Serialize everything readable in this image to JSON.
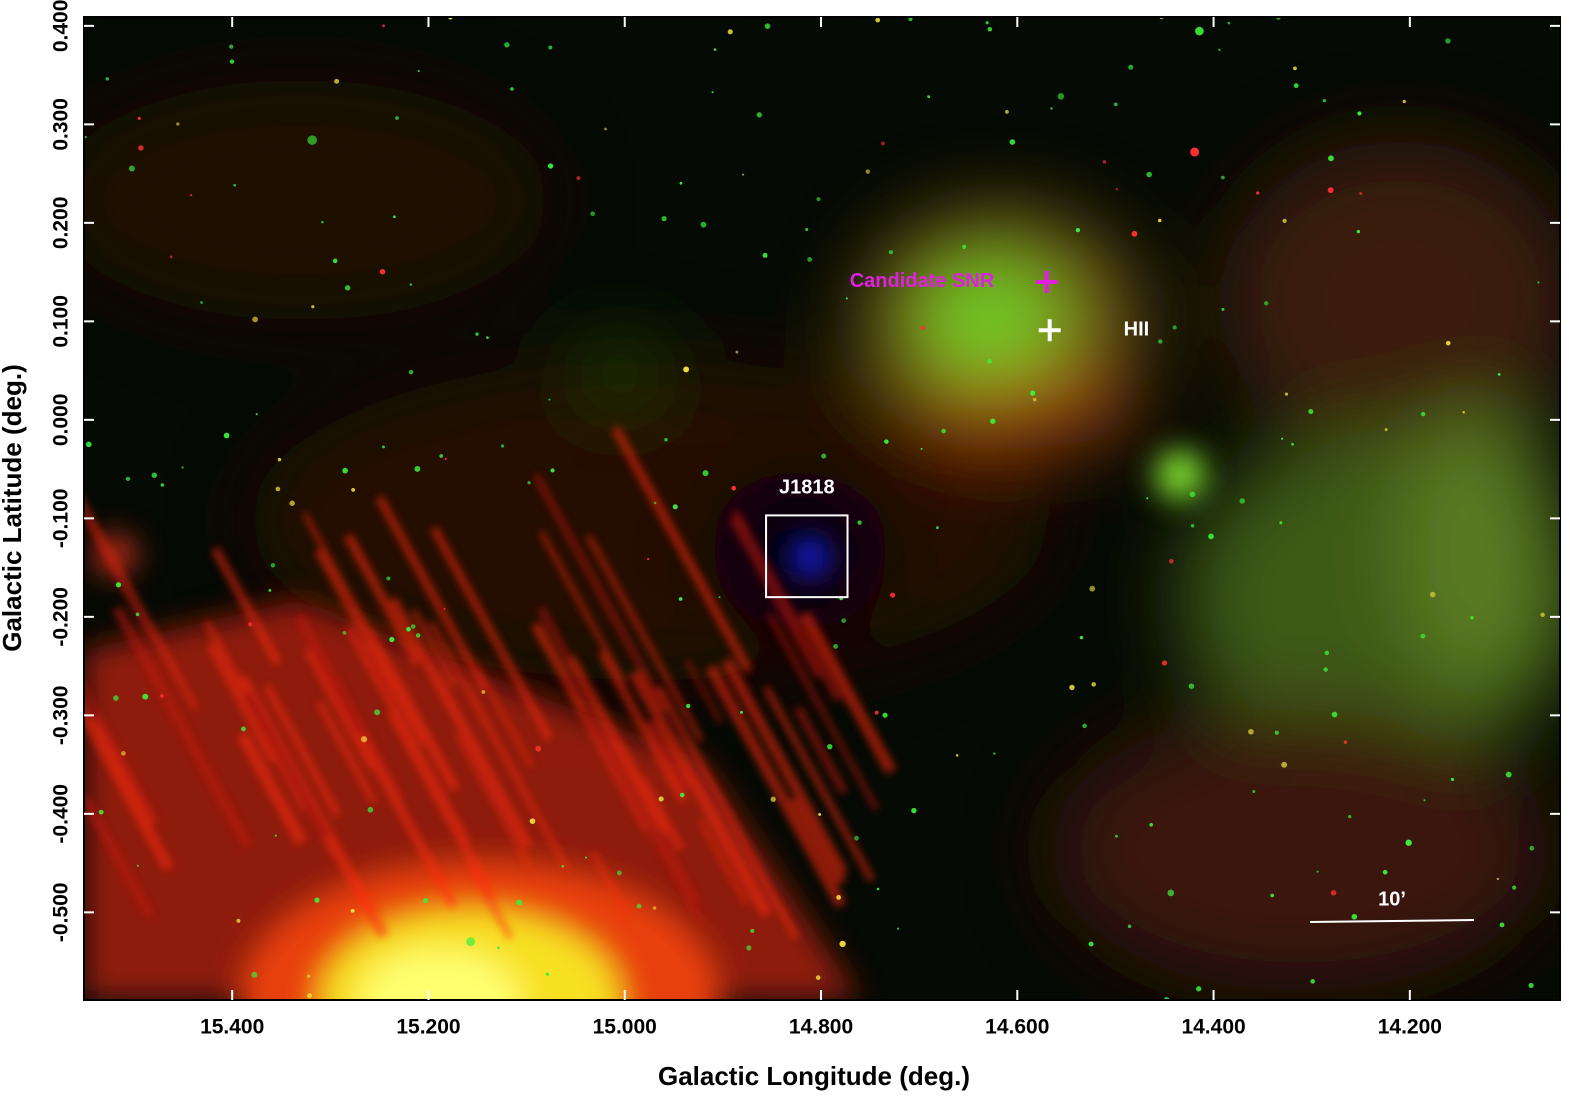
{
  "chart_data": {
    "type": "image",
    "xlabel": "Galactic Longitude (deg.)",
    "ylabel": "Galactic Latitude (deg.)",
    "xlim": [
      15.551,
      14.047
    ],
    "ylim": [
      -0.589,
      0.409
    ],
    "xticks": [
      {
        "value": 15.4,
        "label": "15.400"
      },
      {
        "value": 15.2,
        "label": "15.200"
      },
      {
        "value": 15.0,
        "label": "15.000"
      },
      {
        "value": 14.8,
        "label": "14.800"
      },
      {
        "value": 14.6,
        "label": "14.600"
      },
      {
        "value": 14.4,
        "label": "14.400"
      },
      {
        "value": 14.2,
        "label": "14.200"
      }
    ],
    "yticks": [
      {
        "value": 0.4,
        "label": "0.400"
      },
      {
        "value": 0.3,
        "label": "0.300"
      },
      {
        "value": 0.2,
        "label": "0.200"
      },
      {
        "value": 0.1,
        "label": "0.100"
      },
      {
        "value": 0.0,
        "label": "0.000"
      },
      {
        "value": -0.1,
        "label": "-0.100"
      },
      {
        "value": -0.2,
        "label": "-0.200"
      },
      {
        "value": -0.3,
        "label": "-0.300"
      },
      {
        "value": -0.4,
        "label": "-0.400"
      },
      {
        "value": -0.5,
        "label": "-0.500"
      }
    ],
    "markers": [
      {
        "label": "Candidate SNR",
        "x": 14.57,
        "y": 0.14,
        "color": "#e020e0"
      },
      {
        "label": "HII",
        "x": 14.567,
        "y": 0.091,
        "color": "#ffffff"
      }
    ],
    "region": {
      "label": "J1818",
      "x0": 14.856,
      "x1": 14.773,
      "y0": -0.18,
      "y1": -0.097,
      "color": "#ffffff"
    },
    "scale_bar": {
      "label": "10’"
    }
  }
}
